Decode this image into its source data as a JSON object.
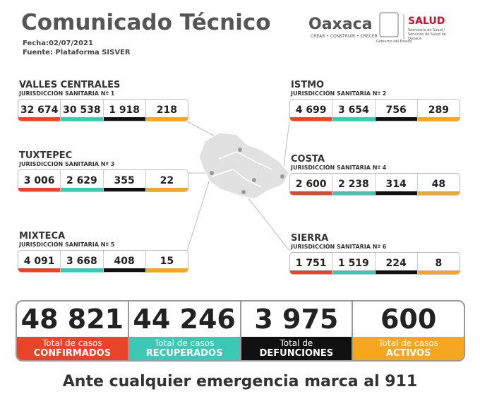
{
  "header": {
    "title": "Comunicado Técnico",
    "date": "Fecha:02/07/2021",
    "source": "Fuente: Plataforma SISVER",
    "logo_state": "Oaxaca",
    "logo_motto": "CREAR • CONSTRUIR • CRECER",
    "logo_gov": "Gobierno del Estado",
    "logo_health": "SALUD",
    "logo_health_sub": "Secretaría de Salud / Servicios de Salud de Oaxaca"
  },
  "regions": [
    {
      "name": "VALLES CENTRALES",
      "jurisdiction": "JURISDICCIÓN SANITARIA Nº 1",
      "values": [
        "32 674",
        "30 538",
        "1 918",
        "218"
      ]
    },
    {
      "name": "ISTMO",
      "jurisdiction": "JURISDICCIÓN SANITARIA Nº 2",
      "values": [
        "4 699",
        "3 654",
        "756",
        "289"
      ]
    },
    {
      "name": "TUXTEPEC",
      "jurisdiction": "JURISDICCIÓN SANITARIA Nº 3",
      "values": [
        "3 006",
        "2 629",
        "355",
        "22"
      ]
    },
    {
      "name": "COSTA",
      "jurisdiction": "JURISDICCIÓN SANITARIA Nº 4",
      "values": [
        "2 600",
        "2 238",
        "314",
        "48"
      ]
    },
    {
      "name": "MIXTECA",
      "jurisdiction": "JURISDICCIÓN SANITARIA Nº 5",
      "values": [
        "4 091",
        "3 668",
        "408",
        "15"
      ]
    },
    {
      "name": "SIERRA",
      "jurisdiction": "JURISDICCIÓN SANITARIA Nº 6",
      "values": [
        "1 751",
        "1 519",
        "224",
        "8"
      ]
    }
  ],
  "totals": [
    {
      "value": "48 821",
      "label_top": "Total de casos",
      "label_bottom": "CONFIRMADOS"
    },
    {
      "value": "44 246",
      "label_top": "Total de casos",
      "label_bottom": "RECUPERADOS"
    },
    {
      "value": "3 975",
      "label_top": "Total de",
      "label_bottom": "DEFUNCIONES"
    },
    {
      "value": "600",
      "label_top": "Total de casos",
      "label_bottom": "ACTIVOS"
    }
  ],
  "footer": "Ante cualquier emergencia marca al 911"
}
